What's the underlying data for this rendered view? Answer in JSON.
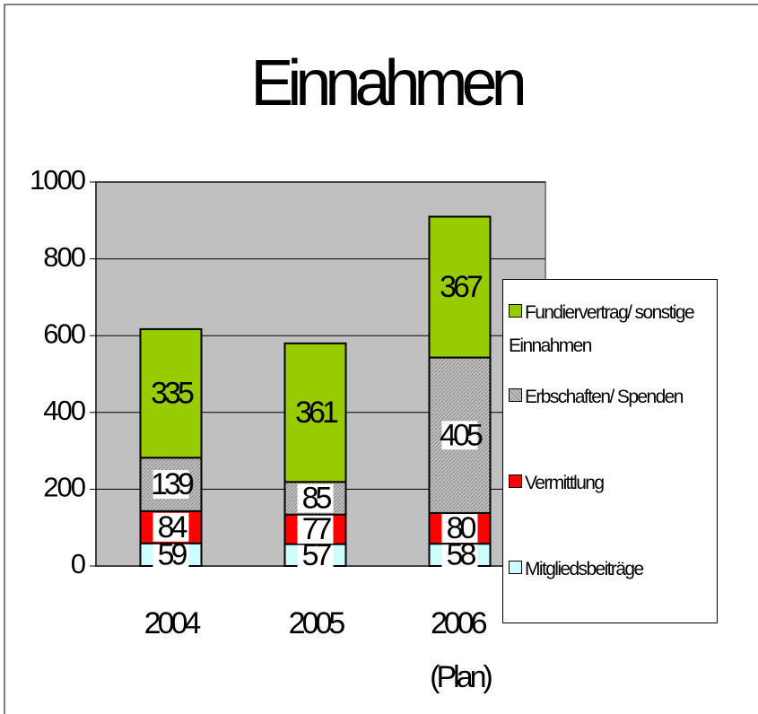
{
  "chart_data": {
    "type": "stacked_bar",
    "title": "Einnahmen",
    "categories": [
      "2004",
      "2005",
      "2006 (Plan)"
    ],
    "series": [
      {
        "name": "Mitgliedsbeiträge",
        "color": "#ccffff",
        "values": [
          59,
          57,
          58
        ]
      },
      {
        "name": "Vermittlung",
        "color": "#ff0000",
        "values": [
          84,
          77,
          80
        ]
      },
      {
        "name": "Erbschaften/ Spenden",
        "color": "#c0c0c0",
        "values": [
          139,
          85,
          405
        ]
      },
      {
        "name": "Fundiervertrag/ sonstige Einnahmen",
        "color": "#99cc00",
        "values": [
          335,
          361,
          367
        ]
      }
    ],
    "ylim": [
      0,
      1000
    ],
    "yticks": [
      0,
      200,
      400,
      600,
      800,
      1000
    ],
    "grid": true,
    "legend": "right"
  }
}
